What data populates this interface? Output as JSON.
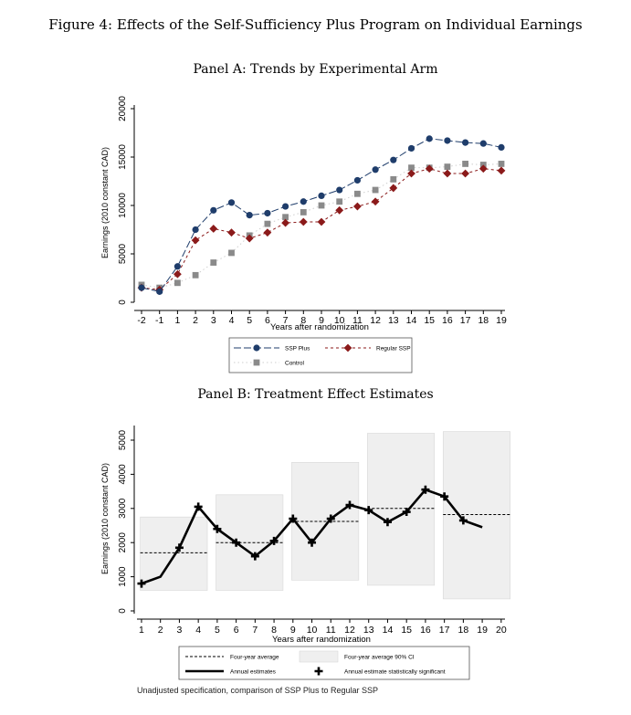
{
  "figure_title": "Figure 4: Effects of the Self-Sufficiency Plus Program on Individual Earnings",
  "footnote": "Unadjusted specification, comparison of SSP Plus to Regular SSP",
  "colors": {
    "ssp_plus": "#1f3d6b",
    "regular_ssp": "#8b1a1a",
    "control": "#8a8a8a",
    "ci_fill": "#efefef",
    "black": "#000000"
  },
  "chart_data": [
    {
      "type": "line",
      "title": "Panel A: Trends by Experimental Arm",
      "xlabel": "Years after randomization",
      "ylabel": "Earnings (2010 constant CAD)",
      "x": [
        -2,
        -1,
        1,
        2,
        3,
        4,
        5,
        6,
        7,
        8,
        9,
        10,
        11,
        12,
        13,
        14,
        15,
        16,
        17,
        18,
        19
      ],
      "x_tick_labels": [
        "-2",
        "-1",
        "1",
        "2",
        "3",
        "4",
        "5",
        "6",
        "7",
        "8",
        "9",
        "10",
        "11",
        "12",
        "13",
        "14",
        "15",
        "16",
        "17",
        "18",
        "19"
      ],
      "ylim": [
        0,
        20000
      ],
      "y_ticks": [
        "0",
        "5000",
        "10000",
        "15000",
        "20000"
      ],
      "series": [
        {
          "name": "SSP Plus",
          "marker": "circle",
          "values": [
            1500,
            1100,
            3700,
            7500,
            9500,
            10300,
            9000,
            9200,
            9900,
            10400,
            11000,
            11600,
            12600,
            13700,
            14700,
            15900,
            16900,
            16700,
            16500,
            16400,
            16000
          ]
        },
        {
          "name": "Regular SSP",
          "marker": "diamond",
          "values": [
            1500,
            1300,
            2900,
            6400,
            7600,
            7200,
            6600,
            7200,
            8200,
            8300,
            8300,
            9500,
            9900,
            10400,
            11800,
            13300,
            13800,
            13300,
            13300,
            13800,
            13600
          ]
        },
        {
          "name": "Control",
          "marker": "square",
          "values": [
            1800,
            1500,
            2000,
            2800,
            4100,
            5100,
            6900,
            8100,
            8800,
            9300,
            10000,
            10400,
            11200,
            11600,
            12700,
            13900,
            13900,
            14000,
            14300,
            14200,
            14300
          ]
        }
      ],
      "legend": "bottom-center"
    },
    {
      "type": "line",
      "title": "Panel B: Treatment Effect Estimates",
      "xlabel": "Years after randomization",
      "ylabel": "Earnings (2010 constant CAD)",
      "x": [
        1,
        2,
        3,
        4,
        5,
        6,
        7,
        8,
        9,
        10,
        11,
        12,
        13,
        14,
        15,
        16,
        17,
        18,
        19
      ],
      "x_ticks": [
        1,
        2,
        3,
        4,
        5,
        6,
        7,
        8,
        9,
        10,
        11,
        12,
        13,
        14,
        15,
        16,
        17,
        18,
        19,
        20
      ],
      "x_tick_labels": [
        "1",
        "2",
        "3",
        "4",
        "5",
        "6",
        "7",
        "8",
        "9",
        "10",
        "11",
        "12",
        "13",
        "14",
        "15",
        "16",
        "17",
        "18",
        "19",
        "20"
      ],
      "xlim": [
        0.5,
        20.5
      ],
      "ylim": [
        0,
        5000
      ],
      "y_ticks": [
        "0",
        "1000",
        "2000",
        "3000",
        "4000",
        "5000"
      ],
      "annual_estimates": [
        800,
        1000,
        1850,
        3050,
        2400,
        2000,
        1600,
        2050,
        2700,
        2000,
        2700,
        3100,
        2950,
        2600,
        2900,
        3550,
        3350,
        2650,
        2450
      ],
      "significant": [
        true,
        false,
        true,
        true,
        true,
        true,
        true,
        true,
        true,
        true,
        true,
        true,
        true,
        true,
        true,
        true,
        true,
        true,
        false
      ],
      "four_year_periods": [
        {
          "x_start": 0.5,
          "x_end": 4.5,
          "average": 1700,
          "ci_low": 600,
          "ci_high": 2750
        },
        {
          "x_start": 4.5,
          "x_end": 8.5,
          "average": 2000,
          "ci_low": 600,
          "ci_high": 3400
        },
        {
          "x_start": 8.5,
          "x_end": 12.5,
          "average": 2620,
          "ci_low": 900,
          "ci_high": 4350
        },
        {
          "x_start": 12.5,
          "x_end": 16.5,
          "average": 3000,
          "ci_low": 750,
          "ci_high": 5200
        },
        {
          "x_start": 16.5,
          "x_end": 20.5,
          "average": 2820,
          "ci_low": 350,
          "ci_high": 5250
        }
      ],
      "legend_entries": [
        "Four-year average",
        "Four-year average 90% CI",
        "Annual estimates",
        "Annual estimate statistically significant"
      ],
      "legend": "bottom-center"
    }
  ]
}
